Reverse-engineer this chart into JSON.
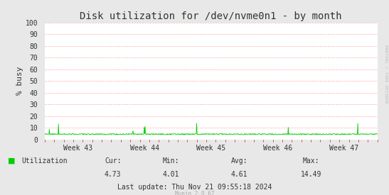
{
  "title": "Disk utilization for /dev/nvme0n1 - by month",
  "ylabel": "% busy",
  "background_color": "#e8e8e8",
  "plot_bg_color": "#ffffff",
  "grid_color": "#ffaaaa",
  "line_color": "#00cc00",
  "ylim": [
    0,
    100
  ],
  "yticks": [
    0,
    10,
    20,
    30,
    40,
    50,
    60,
    70,
    80,
    90,
    100
  ],
  "xtick_labels": [
    "Week 43",
    "Week 44",
    "Week 45",
    "Week 46",
    "Week 47"
  ],
  "legend_label": "Utilization",
  "legend_color": "#00cc00",
  "cur_label": "Cur:",
  "cur_val": "4.73",
  "min_label": "Min:",
  "min_val": "4.01",
  "avg_label": "Avg:",
  "avg_val": "4.61",
  "max_label": "Max:",
  "max_val": "14.49",
  "last_update": "Last update: Thu Nov 21 09:55:18 2024",
  "munin_version": "Munin 2.0.67",
  "rrdtool_label": "RRDTOOL / TOBI OETIKER",
  "title_fontsize": 10,
  "axis_fontsize": 7,
  "label_fontsize": 7,
  "arrow_color": "#5555bb",
  "spine_color": "#aaaaaa"
}
